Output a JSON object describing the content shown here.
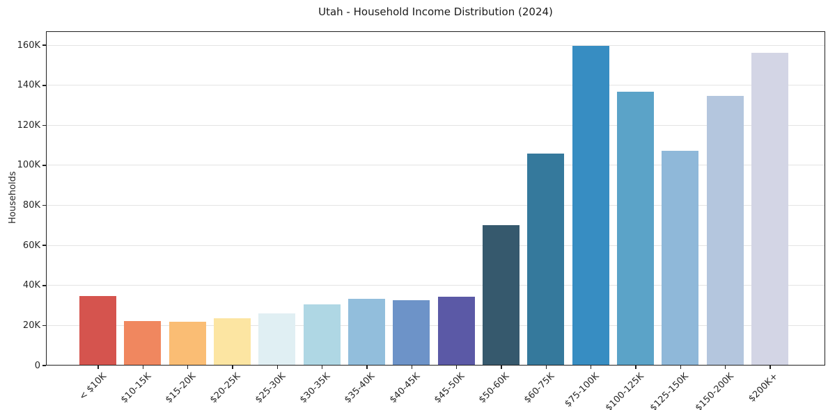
{
  "colors": {
    "grid": "#e3e3e3",
    "spine": "#1f1f1f",
    "text": "#262626",
    "background": "#ffffff"
  },
  "chart_data": {
    "type": "bar",
    "title": "Utah - Household Income Distribution (2024)",
    "xlabel": "",
    "ylabel": "Households",
    "ylim": [
      0,
      167000
    ],
    "grid": "horizontal",
    "legend": "none",
    "categories": [
      "< $10K",
      "$10-15K",
      "$15-20K",
      "$20-25K",
      "$25-30K",
      "$30-35K",
      "$35-40K",
      "$40-45K",
      "$45-50K",
      "$50-60K",
      "$60-75K",
      "$75-100K",
      "$100-125K",
      "$125-150K",
      "$150-200K",
      "$200K+"
    ],
    "values": [
      34400,
      22000,
      21600,
      23200,
      25800,
      30100,
      32900,
      32300,
      33900,
      69700,
      105600,
      159200,
      136600,
      107000,
      134200,
      155900
    ],
    "bar_colors": [
      "#d5544e",
      "#f0875f",
      "#fabd74",
      "#fce5a2",
      "#e0eff3",
      "#afd7e4",
      "#92bedc",
      "#6d93c8",
      "#5b59a6",
      "#36596d",
      "#35799c",
      "#378dc2",
      "#5ba3c8",
      "#8fb8d9",
      "#b4c6de",
      "#d3d5e5"
    ],
    "yticks": [
      {
        "value": 0,
        "label": "0"
      },
      {
        "value": 20000,
        "label": "20K"
      },
      {
        "value": 40000,
        "label": "40K"
      },
      {
        "value": 60000,
        "label": "60K"
      },
      {
        "value": 80000,
        "label": "80K"
      },
      {
        "value": 100000,
        "label": "100K"
      },
      {
        "value": 120000,
        "label": "120K"
      },
      {
        "value": 140000,
        "label": "140K"
      },
      {
        "value": 160000,
        "label": "160K"
      }
    ]
  }
}
